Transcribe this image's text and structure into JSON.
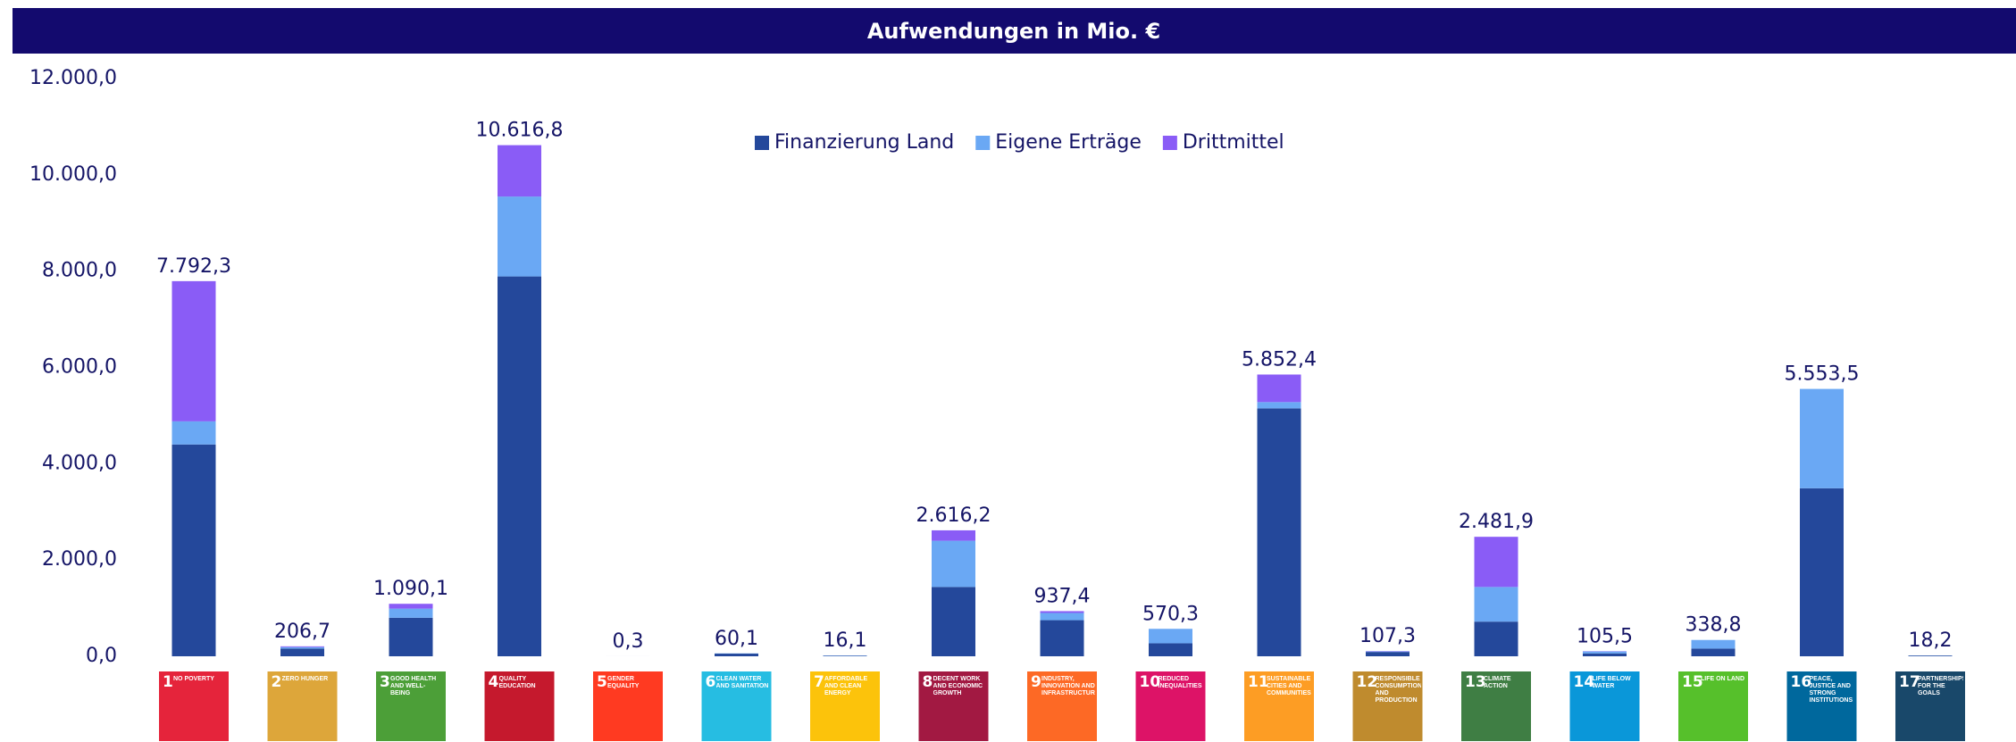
{
  "chart_data": {
    "type": "stacked_bar",
    "title": "Aufwendungen in Mio. €",
    "icon_numbers": [
      1,
      2,
      3,
      4,
      5,
      6,
      7,
      8,
      9,
      10,
      11,
      12,
      13,
      14,
      15,
      16,
      17
    ],
    "categories": [
      "NO POVERTY",
      "ZERO HUNGER",
      "GOOD HEALTH AND WELL-BEING",
      "QUALITY EDUCATION",
      "GENDER EQUALITY",
      "CLEAN WATER AND SANITATION",
      "AFFORDABLE AND CLEAN ENERGY",
      "DECENT WORK AND ECONOMIC GROWTH",
      "INDUSTRY, INNOVATION AND INFRASTRUCTURE",
      "REDUCED INEQUALITIES",
      "SUSTAINABLE CITIES AND COMMUNITIES",
      "RESPONSIBLE CONSUMPTION AND PRODUCTION",
      "CLIMATE ACTION",
      "LIFE BELOW WATER",
      "LIFE ON LAND",
      "PEACE, JUSTICE AND STRONG INSTITUTIONS",
      "PARTNERSHIPS FOR THE GOALS"
    ],
    "icon_colors": [
      "#e5243b",
      "#dda63a",
      "#4c9f38",
      "#c5192d",
      "#ff3a21",
      "#26bde2",
      "#fcc30b",
      "#a21942",
      "#fd6925",
      "#dd1367",
      "#fd9d24",
      "#bf8b2e",
      "#3f7e44",
      "#0a97d9",
      "#56c02b",
      "#00689d",
      "#19486a"
    ],
    "series": [
      {
        "name": "Finanzierung Land",
        "color": "#24489b",
        "values": [
          4400,
          160,
          800,
          7890,
          0.3,
          55,
          10,
          1440,
          750,
          270,
          5150,
          90,
          720,
          60,
          160,
          3490,
          15
        ]
      },
      {
        "name": "Eigene Erträge",
        "color": "#6aa8f4",
        "values": [
          480,
          30,
          190,
          1660,
          0,
          5.1,
          6.1,
          960,
          150,
          300.3,
          130,
          10,
          720,
          40,
          178.8,
          2063.5,
          3.2
        ]
      },
      {
        "name": "Drittmittel",
        "color": "#8a5cf6",
        "values": [
          2912.3,
          16.7,
          100.1,
          1066.8,
          0,
          0,
          0,
          216.2,
          37.4,
          0,
          572.4,
          7.3,
          1041.9,
          5.5,
          0,
          0,
          0
        ]
      }
    ],
    "totals": [
      7792.3,
      206.7,
      1090.1,
      10616.8,
      0.3,
      60.1,
      16.1,
      2616.2,
      937.4,
      570.3,
      5852.4,
      107.3,
      2481.9,
      105.5,
      338.8,
      5553.5,
      18.2
    ],
    "total_labels": [
      "7.792,3",
      "206,7",
      "1.090,1",
      "10.616,8",
      "0,3",
      "60,1",
      "16,1",
      "2.616,2",
      "937,4",
      "570,3",
      "5.852,4",
      "107,3",
      "2.481,9",
      "105,5",
      "338,8",
      "5.553,5",
      "18,2"
    ],
    "ylim": [
      0,
      12000
    ],
    "yticks": [
      {
        "value": 0,
        "label": "0,0"
      },
      {
        "value": 2000,
        "label": "2.000,0"
      },
      {
        "value": 4000,
        "label": "4.000,0"
      },
      {
        "value": 6000,
        "label": "6.000,0"
      },
      {
        "value": 8000,
        "label": "8.000,0"
      },
      {
        "value": 10000,
        "label": "10.000,0"
      },
      {
        "value": 12000,
        "label": "12.000,0"
      }
    ],
    "grid": false,
    "legend": "top"
  }
}
